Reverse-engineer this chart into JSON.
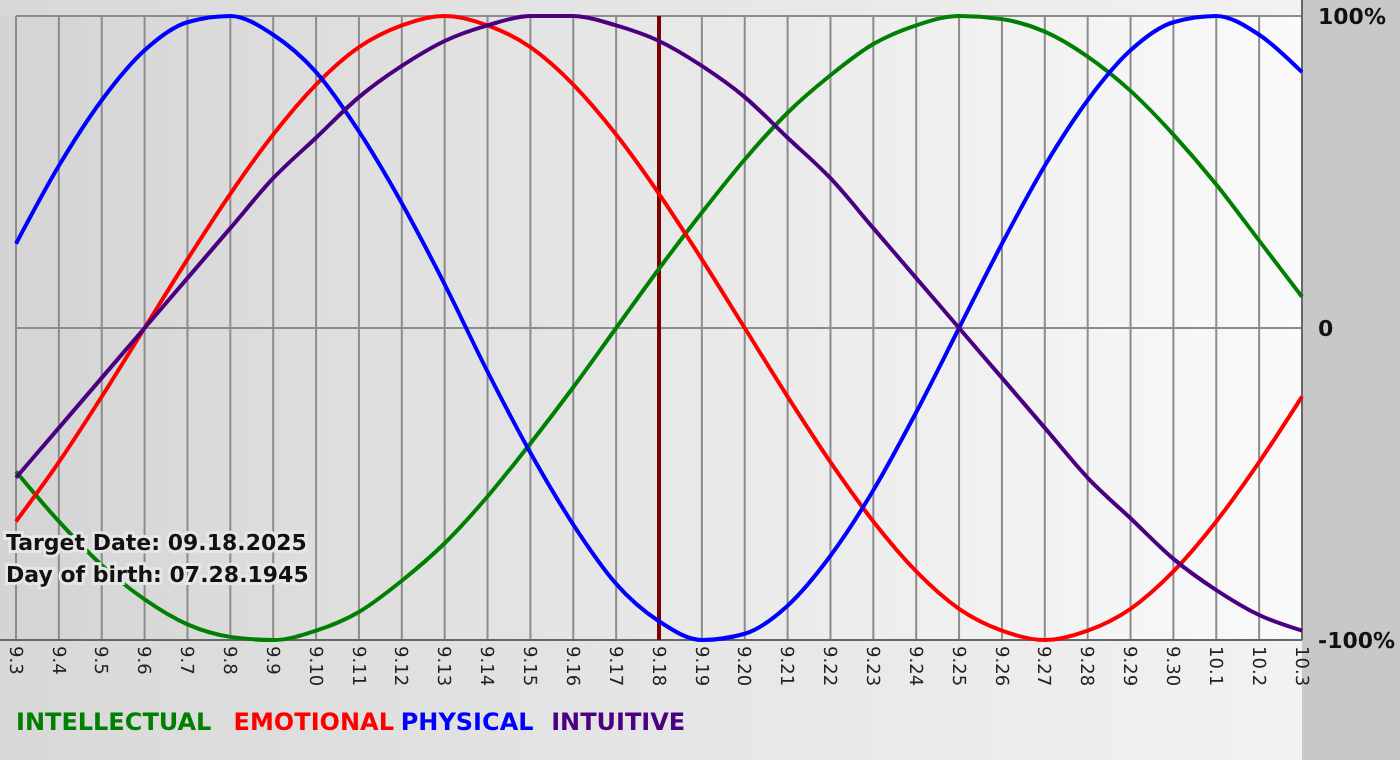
{
  "chart_data": {
    "type": "line",
    "categories": [
      "9.3",
      "9.4",
      "9.5",
      "9.6",
      "9.7",
      "9.8",
      "9.9",
      "9.10",
      "9.11",
      "9.12",
      "9.13",
      "9.14",
      "9.15",
      "9.16",
      "9.17",
      "9.18",
      "9.19",
      "9.20",
      "9.21",
      "9.22",
      "9.23",
      "9.24",
      "9.25",
      "9.26",
      "9.27",
      "9.28",
      "9.29",
      "9.30",
      "10.1",
      "10.2",
      "10.3"
    ],
    "series": [
      {
        "name": "INTELLECTUAL",
        "color": "#008000",
        "values": [
          -46,
          -62,
          -76,
          -87,
          -95,
          -99,
          -100,
          -97,
          -91,
          -81,
          -69,
          -54,
          -37,
          -19,
          0,
          19,
          37,
          54,
          69,
          81,
          91,
          97,
          100,
          99,
          95,
          87,
          76,
          62,
          46,
          28,
          10
        ]
      },
      {
        "name": "EMOTIONAL",
        "color": "#ff0000",
        "values": [
          -62,
          -43,
          -22,
          0,
          22,
          43,
          62,
          78,
          90,
          97,
          100,
          97,
          90,
          78,
          62,
          43,
          22,
          0,
          -22,
          -43,
          -62,
          -78,
          -90,
          -97,
          -100,
          -97,
          -90,
          -78,
          -62,
          -43,
          -22
        ]
      },
      {
        "name": "PHYSICAL",
        "color": "#0000ff",
        "values": [
          27,
          52,
          73,
          89,
          98,
          100,
          94,
          82,
          63,
          40,
          14,
          -14,
          -40,
          -63,
          -82,
          -94,
          -100,
          -98,
          -89,
          -73,
          -52,
          -27,
          0,
          27,
          52,
          73,
          89,
          98,
          100,
          94,
          82
        ]
      },
      {
        "name": "INTUITIVE",
        "color": "#4b0082",
        "values": [
          -48,
          -32,
          -16,
          0,
          16,
          32,
          48,
          61,
          74,
          84,
          92,
          97,
          100,
          100,
          97,
          92,
          84,
          74,
          61,
          48,
          32,
          16,
          0,
          -16,
          -32,
          -48,
          -61,
          -74,
          -84,
          -92,
          -97
        ]
      }
    ],
    "ylim": [
      -100,
      100
    ],
    "yticks": [
      {
        "value": 100,
        "label": "100%"
      },
      0,
      {
        "value": -100,
        "label": "-100%"
      }
    ],
    "grid": true,
    "legend": "bottom",
    "marker": "none",
    "line_style": "solid",
    "ref_lines": [
      {
        "axis": "x",
        "value": "9.18",
        "color": "#800000"
      }
    ],
    "annotations": [
      "Target Date: 09.18.2025",
      "Day of birth: 07.28.1945"
    ]
  }
}
